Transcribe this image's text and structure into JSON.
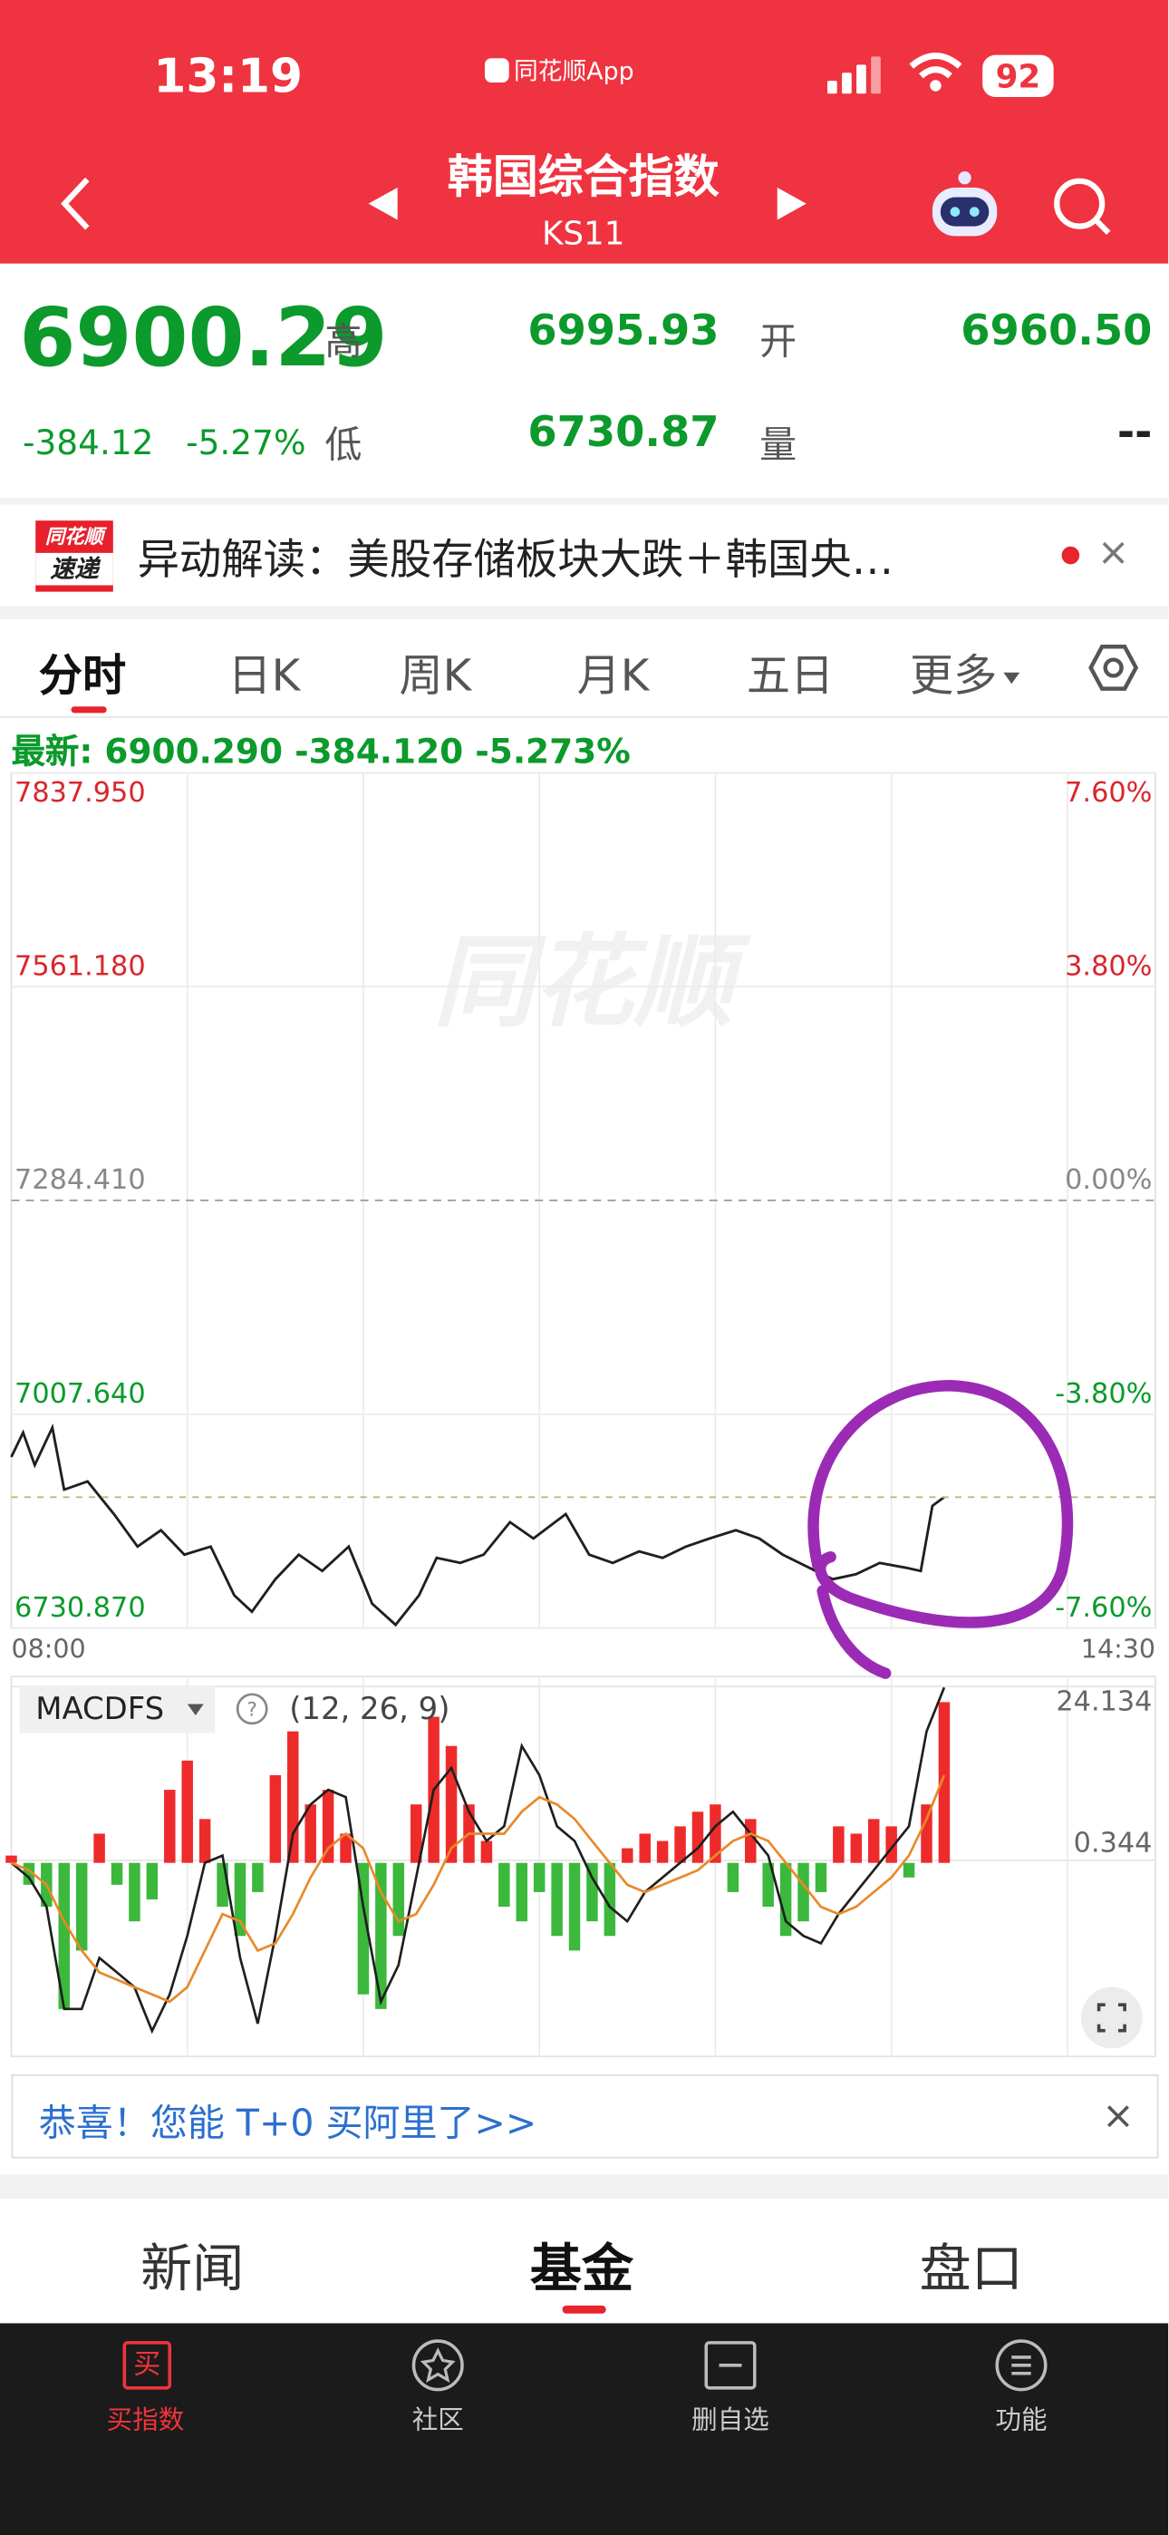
{
  "status_bar": {
    "time": "13:19",
    "app": "同花顺App",
    "battery": "92"
  },
  "header": {
    "title": "韩国综合指数",
    "code": "KS11"
  },
  "quote": {
    "price": "6900.29",
    "change": "-384.12",
    "change_pct": "-5.27%",
    "high_label": "高",
    "high": "6995.93",
    "open_label": "开",
    "open": "6960.50",
    "low_label": "低",
    "low": "6730.87",
    "volume_label": "量",
    "volume": "--"
  },
  "news": {
    "badge_top": "同花顺",
    "badge_bottom": "速递",
    "text": "异动解读：美股存储板块大跌＋韩国央…"
  },
  "tabs": [
    "分时",
    "日K",
    "周K",
    "月K",
    "五日",
    "更多"
  ],
  "latest": {
    "label": "最新:",
    "price": "6900.290",
    "change": "-384.120",
    "pct": "-5.273%"
  },
  "chart_data": [
    {
      "type": "line",
      "watermark": "同花顺",
      "x": [
        0,
        4,
        8,
        14,
        18,
        26,
        35,
        43,
        51,
        59,
        68,
        76,
        82,
        90,
        98,
        106,
        115,
        123,
        131,
        139,
        145,
        153,
        161,
        170,
        178,
        189,
        197,
        205,
        214,
        222,
        230,
        238,
        247,
        255,
        263,
        272,
        280,
        288,
        296,
        305,
        310,
        314,
        318
      ],
      "series": [
        {
          "color": "#1f1f1f",
          "values": [
            6952.3,
            6983.9,
            6941.8,
            6990.3,
            6910.1,
            6920.7,
            6878.5,
            6836.3,
            6857.4,
            6825.8,
            6836.3,
            6773.1,
            6752.0,
            6794.1,
            6825.8,
            6804.7,
            6836.3,
            6762.5,
            6735.1,
            6773.1,
            6821.6,
            6815.2,
            6825.8,
            6867.9,
            6846.9,
            6878.5,
            6825.8,
            6815.2,
            6830.0,
            6821.6,
            6836.3,
            6846.9,
            6857.4,
            6846.9,
            6825.8,
            6808.9,
            6794.1,
            6800.5,
            6815.2,
            6808.9,
            6804.7,
            6889.0,
            6900.29
          ]
        }
      ],
      "xlim": [
        0,
        390
      ],
      "xticks": [
        {
          "value": 0,
          "label": "08:00"
        },
        {
          "value": 390,
          "label": "14:30"
        }
      ],
      "x_gridlines": [
        60,
        120,
        180,
        240,
        300,
        360
      ],
      "ylim": [
        6730.87,
        7837.95
      ],
      "yticks": [
        {
          "value": 7837.95,
          "label": "7837.950"
        },
        {
          "value": 7561.18,
          "label": "7561.180"
        },
        {
          "value": 7284.41,
          "label": "7284.410"
        },
        {
          "value": 7007.64,
          "label": "7007.640"
        },
        {
          "value": 6730.87,
          "label": "6730.870"
        }
      ],
      "y2lim": [
        -7.6,
        7.6
      ],
      "y2ticks": [
        {
          "value": 7.6,
          "label": "7.60%"
        },
        {
          "value": 3.8,
          "label": "3.80%"
        },
        {
          "value": 0,
          "label": "0.00%"
        },
        {
          "value": -3.8,
          "label": "-3.80%"
        },
        {
          "value": -7.6,
          "label": "-7.60%"
        }
      ],
      "up_color": "#d9262c",
      "down_color": "#0b9a2b",
      "flat_color": "#888888"
    },
    {
      "type": "macd",
      "title": "MACDFS",
      "params": "(12, 26, 9)",
      "x": [
        0,
        6,
        12,
        18,
        24,
        30,
        36,
        42,
        48,
        54,
        60,
        66,
        72,
        78,
        84,
        90,
        96,
        102,
        108,
        114,
        120,
        126,
        132,
        138,
        144,
        150,
        156,
        162,
        168,
        174,
        180,
        186,
        192,
        198,
        204,
        210,
        216,
        222,
        228,
        234,
        240,
        246,
        252,
        258,
        264,
        270,
        276,
        282,
        288,
        294,
        300,
        306,
        312,
        318
      ],
      "values": [
        1,
        -3,
        -6,
        -20,
        -12,
        4,
        -3,
        -8,
        -5,
        10,
        14,
        6,
        -6,
        -10,
        -4,
        12,
        18,
        8,
        10,
        4,
        -18,
        -20,
        -10,
        8,
        20,
        16,
        8,
        3,
        -6,
        -8,
        -4,
        -10,
        -12,
        -8,
        -10,
        2,
        4,
        3,
        5,
        7,
        8,
        -4,
        6,
        -6,
        -10,
        -8,
        -4,
        5,
        4,
        6,
        5,
        -2,
        8,
        22
      ],
      "series": [
        {
          "color": "#1f1f1f",
          "values": [
            0,
            -2,
            -6,
            -20,
            -20,
            -13,
            -15,
            -17,
            -23,
            -18,
            -10,
            0,
            1,
            -13,
            -22,
            -10,
            4,
            8,
            10,
            9,
            -6,
            -19,
            -14,
            -2,
            10,
            13,
            7,
            3,
            5,
            16,
            12,
            5,
            3,
            -2,
            -6,
            -8,
            -4,
            -2,
            0,
            2,
            5,
            7,
            4,
            1,
            -8,
            -10,
            -11,
            -7,
            -4,
            -1,
            2,
            5,
            18,
            24
          ]
        },
        {
          "color": "#e8892a",
          "values": [
            0,
            -1,
            -3,
            -8,
            -12,
            -15,
            -16,
            -17,
            -18,
            -19,
            -17,
            -12,
            -7,
            -8,
            -12,
            -11,
            -7,
            -2,
            2,
            4,
            2,
            -4,
            -8,
            -7,
            -3,
            2,
            4,
            4,
            4,
            7,
            9,
            8,
            6,
            3,
            0,
            -3,
            -4,
            -3,
            -2,
            -1,
            1,
            3,
            4,
            3,
            0,
            -3,
            -6,
            -7,
            -6,
            -4,
            -2,
            1,
            6,
            12
          ]
        }
      ],
      "xlim": [
        0,
        390
      ],
      "x_gridlines": [
        60,
        120,
        180,
        240,
        300,
        360
      ],
      "ylim": [
        -26.5,
        25.5
      ],
      "yticks": [
        24.134,
        0.344
      ],
      "up_color": "#ee2b2b",
      "down_color": "#3cb83c"
    }
  ],
  "promo": {
    "text": "恭喜！您能 T+0 买阿里了>>"
  },
  "content_tabs": [
    "新闻",
    "基金",
    "盘口"
  ],
  "bottom_nav": [
    {
      "icon": "买",
      "label": "买指数"
    },
    {
      "label": "社区"
    },
    {
      "label": "删自选"
    },
    {
      "label": "功能"
    }
  ]
}
